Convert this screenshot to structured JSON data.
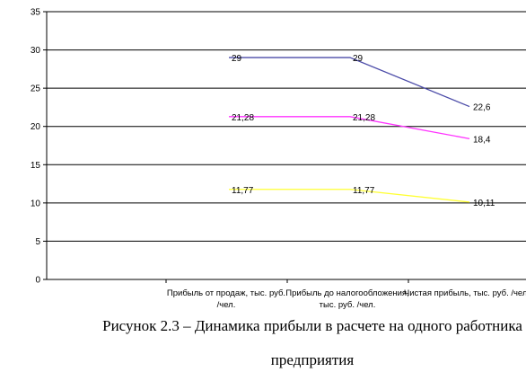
{
  "chart_data": {
    "type": "line",
    "categories": [
      [
        "Прибыль от продаж, тыс. руб.",
        "/чел."
      ],
      [
        "Прибыль до налогообложения,",
        "тыс. руб. /чел."
      ],
      [
        "Чистая прибыль, тыс. руб. /чел."
      ]
    ],
    "series": [
      {
        "values": [
          29,
          29,
          22.6
        ],
        "labels": [
          "29",
          "29",
          "22,6"
        ],
        "color": "#4b4ba8"
      },
      {
        "values": [
          21.28,
          21.28,
          18.4
        ],
        "labels": [
          "21,28",
          "21,28",
          "18,4"
        ],
        "color": "#ff33ff"
      },
      {
        "values": [
          11.77,
          11.77,
          10.11
        ],
        "labels": [
          "11,77",
          "11,77",
          "10,11"
        ],
        "color": "#ffff33"
      }
    ],
    "ylim": [
      0,
      35
    ],
    "yticks": [
      0,
      5,
      10,
      15,
      20,
      25,
      30,
      35
    ],
    "grid": true,
    "legend": "none"
  },
  "caption": {
    "line1": "Рисунок 2.3 – Динамика прибыли в расчете на одного работника",
    "line2": "предприятия"
  }
}
